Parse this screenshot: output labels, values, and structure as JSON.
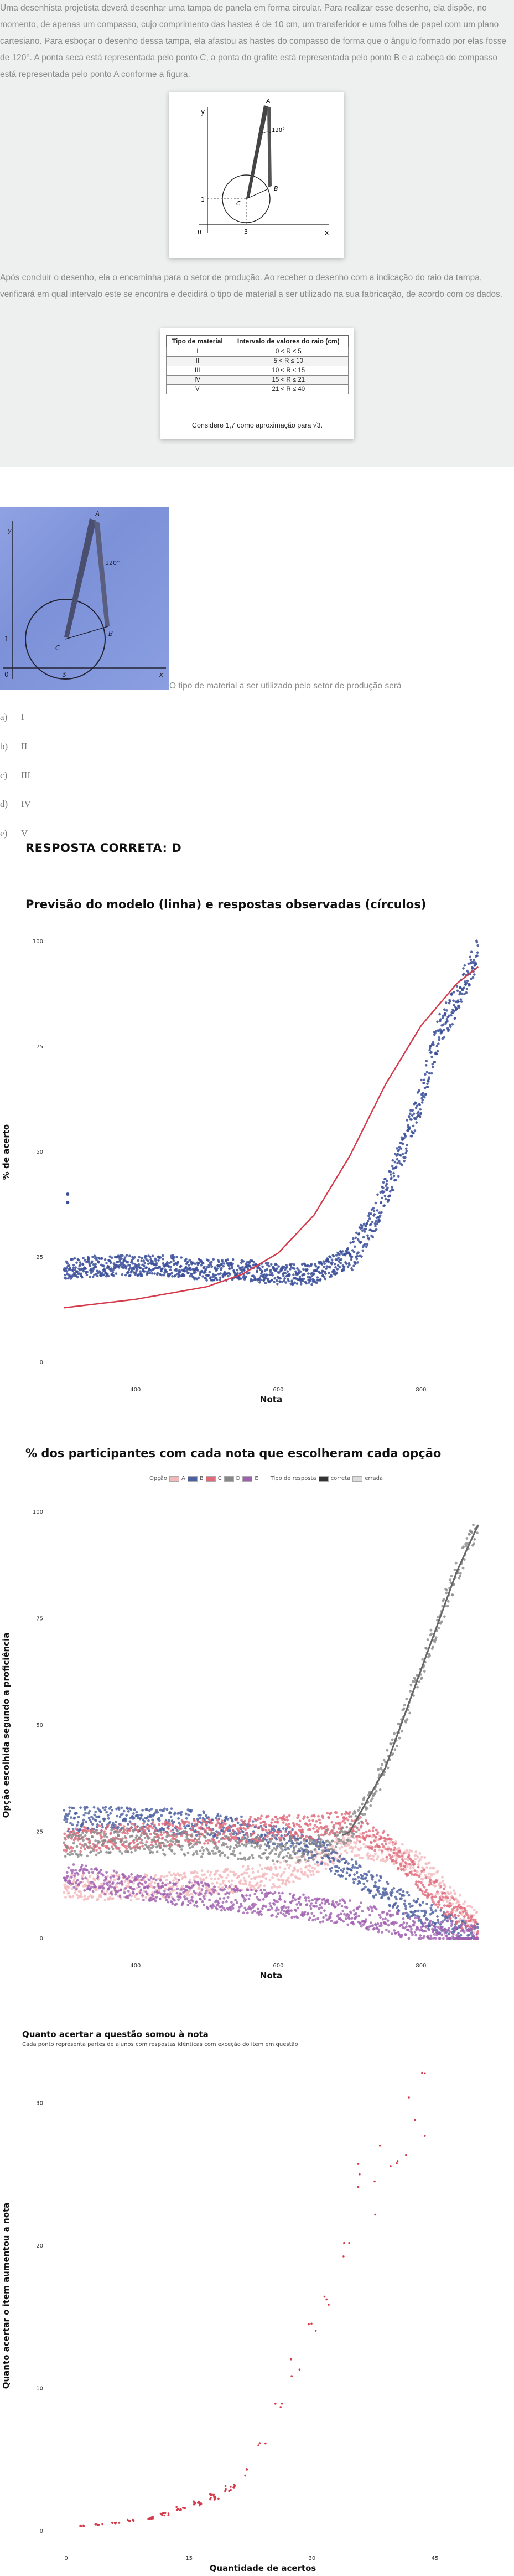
{
  "question": {
    "paragraph1": "Uma desenhista projetista deverá desenhar uma tampa de panela em forma circular. Para realizar esse desenho, ela dispõe, no momento, de apenas um compasso, cujo comprimento das hastes é de 10 cm, um transferidor e uma folha de papel com um plano cartesiano. Para esboçar o desenho dessa tampa, ela afastou as hastes do compasso de forma que o ângulo formado por elas fosse de 120°. A ponta seca está representada pelo ponto C, a ponta do grafite está representada pelo ponto B e a cabeça do compasso está representada pelo ponto A conforme a figura.",
    "paragraph2": "Após concluir o desenho, ela o encaminha para o setor de produção. Ao receber o desenho com a indicação do raio da tampa, verificará em qual intervalo este se encontra e decidirá o tipo de material a ser utilizado na sua fabricação, de acordo com os dados.",
    "figure_labels": {
      "A": "A",
      "B": "B",
      "C": "C",
      "y": "y",
      "x": "x",
      "angle": "120°",
      "zero": "0",
      "one": "1",
      "three": "3"
    },
    "table": {
      "headers": [
        "Tipo de material",
        "Intervalo de valores do raio (cm)"
      ],
      "rows": [
        [
          "I",
          "0 < R ≤ 5"
        ],
        [
          "II",
          "5 < R ≤ 10"
        ],
        [
          "III",
          "10 < R ≤ 15"
        ],
        [
          "IV",
          "15 < R ≤ 21"
        ],
        [
          "V",
          "21 < R ≤ 40"
        ]
      ],
      "note": "Considere 1,7 como aproximação para √3."
    },
    "stem": "O tipo de material a ser utilizado pelo setor de produção será",
    "options": [
      {
        "letter": "a)",
        "text": "I"
      },
      {
        "letter": "b)",
        "text": "II"
      },
      {
        "letter": "c)",
        "text": "III"
      },
      {
        "letter": "d)",
        "text": "IV"
      },
      {
        "letter": "e)",
        "text": "V"
      }
    ],
    "answer": "RESPOSTA CORRETA: D"
  },
  "chart1_title": "Previsão do modelo (linha) e respostas observadas (círculos)",
  "chart2_title": "% dos participantes com cada nota que escolheram cada opção",
  "legend": {
    "option_label": "Opção",
    "options": [
      "A",
      "B",
      "C",
      "D",
      "E"
    ],
    "option_colors": [
      "#f2b9bd",
      "#4c5fa0",
      "#e06a7a",
      "#888888",
      "#a060b0"
    ],
    "response_label": "Tipo de resposta",
    "response_types": [
      "correta",
      "errada"
    ]
  },
  "chart3_title": "Quanto acertar a questão somou à nota",
  "chart3_subtitle": "Cada ponto representa partes de alunos com respostas idênticas com exceção do item em questão",
  "colors": {
    "red": "#d43a4a",
    "blue": "#3b4f9a",
    "grey": "#7a7a7a",
    "panel": "#eef0ef"
  },
  "chart_data": [
    {
      "type": "scatter",
      "title": "Previsão do modelo (linha) e respostas observadas (círculos)",
      "xlabel": "Nota",
      "ylabel": "% de acerto",
      "xticks": [
        "400",
        "600",
        "800"
      ],
      "yticks": [
        "0",
        "25",
        "50",
        "75",
        "100"
      ],
      "ylim": [
        0,
        100
      ],
      "series": [
        {
          "values_x": [
            300,
            400,
            500,
            550,
            600,
            650,
            700,
            750,
            800,
            850,
            880
          ],
          "values": [
            13,
            15,
            18,
            21,
            26,
            35,
            49,
            66,
            80,
            90,
            94
          ]
        },
        {
          "values_x": [
            300,
            350,
            400,
            450,
            500,
            550,
            600,
            650,
            700,
            725,
            750,
            775,
            800,
            825,
            850,
            860,
            880
          ],
          "values": [
            22,
            23,
            23,
            23,
            22,
            22,
            21,
            21,
            25,
            31,
            40,
            51,
            63,
            79,
            86,
            90,
            97
          ]
        }
      ]
    },
    {
      "type": "scatter",
      "title": "% dos participantes com cada nota que escolheram cada opção",
      "xlabel": "Nota",
      "ylabel": "Opção escolhida segundo a proficiência",
      "xticks": [
        "400",
        "600",
        "800"
      ],
      "yticks": [
        "0",
        "25",
        "50",
        "75",
        "100"
      ],
      "ylim": [
        0,
        100
      ],
      "series": [
        {
          "name": "A",
          "values_x": [
            300,
            400,
            500,
            600,
            650,
            700,
            750,
            800,
            850,
            880
          ],
          "values": [
            12,
            12,
            13,
            15,
            18,
            22,
            21,
            17,
            8,
            3
          ]
        },
        {
          "name": "B",
          "values_x": [
            300,
            400,
            500,
            600,
            650,
            700,
            750,
            800,
            850,
            880
          ],
          "values": [
            28,
            28,
            27,
            24,
            21,
            16,
            11,
            6,
            2,
            1
          ]
        },
        {
          "name": "C",
          "values_x": [
            300,
            400,
            500,
            600,
            650,
            700,
            750,
            800,
            850,
            880
          ],
          "values": [
            23,
            24,
            25,
            26,
            26,
            27,
            22,
            14,
            6,
            2
          ]
        },
        {
          "name": "D",
          "values_x": [
            300,
            400,
            500,
            600,
            650,
            700,
            750,
            800,
            850,
            880
          ],
          "values": [
            22,
            23,
            22,
            21,
            21,
            25,
            40,
            63,
            86,
            97
          ]
        },
        {
          "name": "E",
          "values_x": [
            300,
            400,
            500,
            600,
            650,
            700,
            750,
            800,
            850,
            880
          ],
          "values": [
            15,
            12,
            10,
            8,
            7,
            6,
            4,
            2,
            1,
            0
          ]
        }
      ]
    },
    {
      "type": "scatter",
      "title": "Quanto acertar a questão somou à nota",
      "xlabel": "Quantidade de acertos",
      "ylabel": "Quanto acertar o item aumentou a nota",
      "xticks": [
        "0",
        "15",
        "30",
        "45"
      ],
      "yticks": [
        "0",
        "10",
        "20",
        "30"
      ],
      "ylim": [
        0,
        33
      ],
      "points_x": [
        2,
        4,
        6,
        8,
        10,
        12,
        14,
        16,
        18,
        20,
        22,
        24,
        26,
        28,
        30,
        32,
        34,
        36,
        38,
        40,
        42,
        44
      ],
      "points_y": [
        0.4,
        0.5,
        0.6,
        0.8,
        1.0,
        1.3,
        1.7,
        2.1,
        2.6,
        3.3,
        4.5,
        6.5,
        9.0,
        12.5,
        15.5,
        18.5,
        22.0,
        25.0,
        27.5,
        29.5,
        31.0,
        31.5
      ]
    }
  ]
}
